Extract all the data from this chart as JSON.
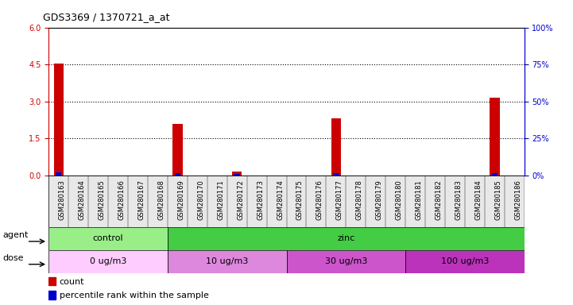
{
  "title": "GDS3369 / 1370721_a_at",
  "samples": [
    "GSM280163",
    "GSM280164",
    "GSM280165",
    "GSM280166",
    "GSM280167",
    "GSM280168",
    "GSM280169",
    "GSM280170",
    "GSM280171",
    "GSM280172",
    "GSM280173",
    "GSM280174",
    "GSM280175",
    "GSM280176",
    "GSM280177",
    "GSM280178",
    "GSM280179",
    "GSM280180",
    "GSM280181",
    "GSM280182",
    "GSM280183",
    "GSM280184",
    "GSM280185",
    "GSM280186"
  ],
  "count_values": [
    4.55,
    0.0,
    0.0,
    0.0,
    0.0,
    0.0,
    2.1,
    0.0,
    0.0,
    0.15,
    0.0,
    0.0,
    0.0,
    0.0,
    2.3,
    0.0,
    0.0,
    0.0,
    0.0,
    0.0,
    0.0,
    0.0,
    3.15,
    0.0
  ],
  "percentile_values_scaled": [
    0.12,
    0.0,
    0.0,
    0.0,
    0.0,
    0.0,
    0.08,
    0.0,
    0.0,
    0.05,
    0.0,
    0.0,
    0.0,
    0.0,
    0.1,
    0.0,
    0.0,
    0.0,
    0.0,
    0.0,
    0.0,
    0.0,
    0.09,
    0.0
  ],
  "ylim_left": [
    0,
    6
  ],
  "ylim_right": [
    0,
    100
  ],
  "yticks_left": [
    0,
    1.5,
    3.0,
    4.5,
    6.0
  ],
  "yticks_right": [
    0,
    25,
    50,
    75,
    100
  ],
  "count_color": "#cc0000",
  "percentile_color": "#0000cc",
  "agent_groups": [
    {
      "label": "control",
      "start": 0,
      "end": 6,
      "color": "#99ee88"
    },
    {
      "label": "zinc",
      "start": 6,
      "end": 24,
      "color": "#44cc44"
    }
  ],
  "dose_groups": [
    {
      "label": "0 ug/m3",
      "start": 0,
      "end": 6,
      "color": "#ffccff"
    },
    {
      "label": "10 ug/m3",
      "start": 6,
      "end": 12,
      "color": "#dd88dd"
    },
    {
      "label": "30 ug/m3",
      "start": 12,
      "end": 18,
      "color": "#cc55cc"
    },
    {
      "label": "100 ug/m3",
      "start": 18,
      "end": 24,
      "color": "#bb33bb"
    }
  ],
  "background_color": "#ffffff",
  "left_axis_color": "#cc0000",
  "right_axis_color": "#0000cc",
  "title_fontsize": 9,
  "tick_fontsize": 7,
  "label_fontsize": 8
}
